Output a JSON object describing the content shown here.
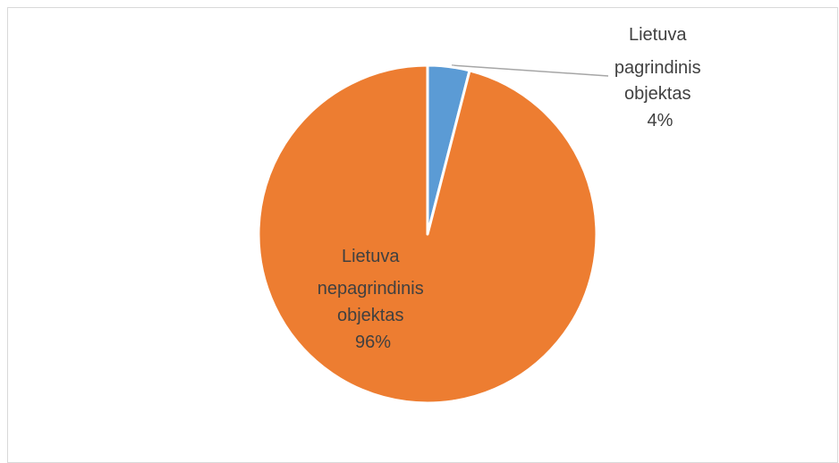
{
  "chart_data": {
    "type": "pie",
    "categories": [
      "Lietuva pagrindinis objektas",
      "Lietuva nepagrindinis objektas"
    ],
    "values": [
      4,
      96
    ],
    "colors": [
      "#5b9bd5",
      "#ed7d31"
    ],
    "data_labels": [
      {
        "lines": [
          "Lietuva",
          "pagrindinis",
          "objektas",
          "4%"
        ]
      },
      {
        "lines": [
          "Lietuva",
          "nepagrindinis",
          "objektas",
          "96%"
        ]
      }
    ],
    "legend": "none",
    "leader_line": true
  }
}
